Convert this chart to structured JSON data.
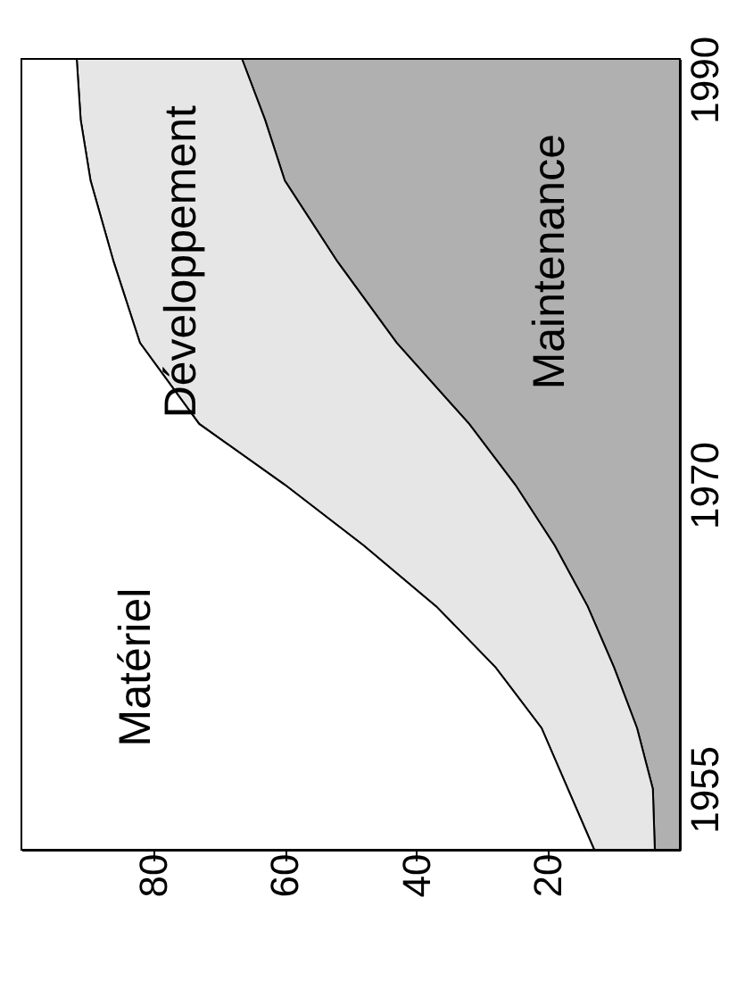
{
  "chart_data": {
    "type": "area",
    "stacked": true,
    "orientation": "horizontal",
    "x": [
      1952,
      1955,
      1958,
      1961,
      1964,
      1967,
      1970,
      1973,
      1977,
      1981,
      1985,
      1988,
      1991
    ],
    "series": [
      {
        "name": "Maintenance",
        "color": "#b0b0b0",
        "values": [
          3.8,
          4.1,
          6.5,
          10,
          14,
          19,
          25,
          32,
          43,
          52,
          60,
          63,
          66.5
        ]
      },
      {
        "name": "Développement",
        "color": "#e6e6e6",
        "values": [
          9.2,
          12.9,
          14.5,
          18,
          23,
          29,
          35,
          41,
          39,
          34,
          29.5,
          28,
          25.1
        ]
      },
      {
        "name": "Matériel",
        "color": "#ffffff",
        "values": [
          87,
          83,
          79,
          72,
          63,
          52,
          40,
          27,
          18,
          14,
          10.5,
          9,
          8.4
        ]
      }
    ],
    "xlim": [
      100,
      0
    ],
    "xticks": [
      20,
      40,
      60,
      80
    ],
    "ylim": [
      1952,
      1991
    ],
    "yticks": [
      1955,
      1970,
      1990
    ]
  }
}
